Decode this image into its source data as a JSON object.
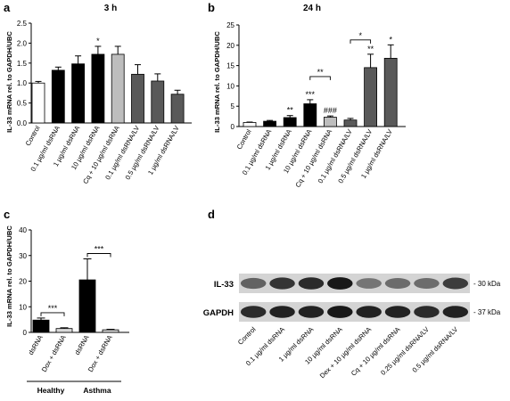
{
  "panels": [
    {
      "id": "a",
      "label": "a",
      "title": "3 h",
      "ylabel": "IL-33 mRNA rel. to GAPDH/UBC",
      "ylim": [
        0,
        2.5
      ],
      "yticks": [
        "0.0",
        "0.5",
        "1.0",
        "1.5",
        "2.0",
        "2.5"
      ],
      "categories": [
        "Control",
        "0.1 µg/ml dsRNA",
        "1 µg/ml dsRNA",
        "10 µg/ml dsRNA",
        "Cq + 10 µg/ml dsRNA",
        "0.1 µg/ml dsRNA/LV",
        "0.5 µg/ml dsRNA/LV",
        "1 µg/ml dsRNA/LV"
      ],
      "values": [
        1.0,
        1.32,
        1.48,
        1.72,
        1.72,
        1.22,
        1.05,
        0.72
      ],
      "errors": [
        0.04,
        0.08,
        0.2,
        0.2,
        0.2,
        0.24,
        0.18,
        0.1
      ],
      "fills": [
        "#ffffff",
        "#000000",
        "#000000",
        "#000000",
        "#bdbdbd",
        "#595959",
        "#595959",
        "#595959"
      ],
      "annotations": [
        {
          "text": "*",
          "bar": 3
        }
      ]
    },
    {
      "id": "b",
      "label": "b",
      "title": "24 h",
      "ylabel": "IL-33 mRNA rel. to GAPDH/UBC",
      "ylim": [
        0,
        25
      ],
      "yticks": [
        "0",
        "5",
        "10",
        "15",
        "20",
        "25"
      ],
      "categories": [
        "Control",
        "0.1 µg/ml dsRNA",
        "1 µg/ml dsRNA",
        "10 µg/ml dsRNA",
        "Cq + 10 µg/ml dsRNA",
        "0.1 µg/ml dsRNA/LV",
        "0.5 µg/ml dsRNA/LV",
        "1 µg/ml dsRNA/LV"
      ],
      "values": [
        1.0,
        1.3,
        2.2,
        5.6,
        2.3,
        1.6,
        14.5,
        16.8
      ],
      "errors": [
        0.1,
        0.2,
        0.5,
        1.0,
        0.3,
        0.4,
        3.3,
        3.3
      ],
      "fills": [
        "#ffffff",
        "#000000",
        "#000000",
        "#000000",
        "#bdbdbd",
        "#595959",
        "#595959",
        "#595959"
      ],
      "annotations": [
        {
          "text": "**",
          "bar": 2
        },
        {
          "text": "***",
          "bar": 3
        },
        {
          "text": "###",
          "bar": 4
        },
        {
          "text": "**",
          "bar": 6
        },
        {
          "text": "*",
          "bar": 7
        }
      ],
      "brackets": [
        {
          "text": "**",
          "from": 3,
          "to": 4
        },
        {
          "text": "*",
          "from": 5,
          "to": 6
        }
      ]
    },
    {
      "id": "c",
      "label": "c",
      "ylabel": "IL-33 mRNA rel. to GAPDH/UBC",
      "ylim": [
        0,
        40
      ],
      "yticks": [
        "0",
        "10",
        "20",
        "30",
        "40"
      ],
      "categories": [
        "dsRNA",
        "Dox + dsRNA",
        "dsRNA",
        "Dox + dsRNA"
      ],
      "values": [
        4.8,
        1.5,
        20.5,
        1.0
      ],
      "errors": [
        0.8,
        0.3,
        8.2,
        0.2
      ],
      "fills": [
        "#000000",
        "#d9d9d9",
        "#000000",
        "#d9d9d9"
      ],
      "brackets": [
        {
          "text": "***",
          "from": 0,
          "to": 1
        },
        {
          "text": "***",
          "from": 2,
          "to": 3
        }
      ],
      "groups": [
        {
          "name": "Healthy",
          "bars": [
            0,
            1
          ]
        },
        {
          "name": "Asthma",
          "bars": [
            2,
            3
          ]
        }
      ]
    }
  ],
  "blot": {
    "label": "d",
    "rows": [
      {
        "name": "IL-33",
        "size": "- 30 kDa",
        "intensity": [
          0.55,
          0.8,
          0.85,
          0.95,
          0.45,
          0.5,
          0.5,
          0.75
        ]
      },
      {
        "name": "GAPDH",
        "size": "- 37 kDa",
        "intensity": [
          0.85,
          0.9,
          0.9,
          0.95,
          0.9,
          0.9,
          0.85,
          0.9
        ]
      }
    ],
    "lanes": [
      "Control",
      "0.1 µg/ml dsRNA",
      "1 µg/ml dsRNA",
      "10 µg/ml dsRNA",
      "Dex + 10 µg/ml dsRNA",
      "Cq + 10 µg/ml dsRNA",
      "0.25 µg/ml dsRNA/LV",
      "0.5 µg/ml dsRNA/LV"
    ]
  }
}
